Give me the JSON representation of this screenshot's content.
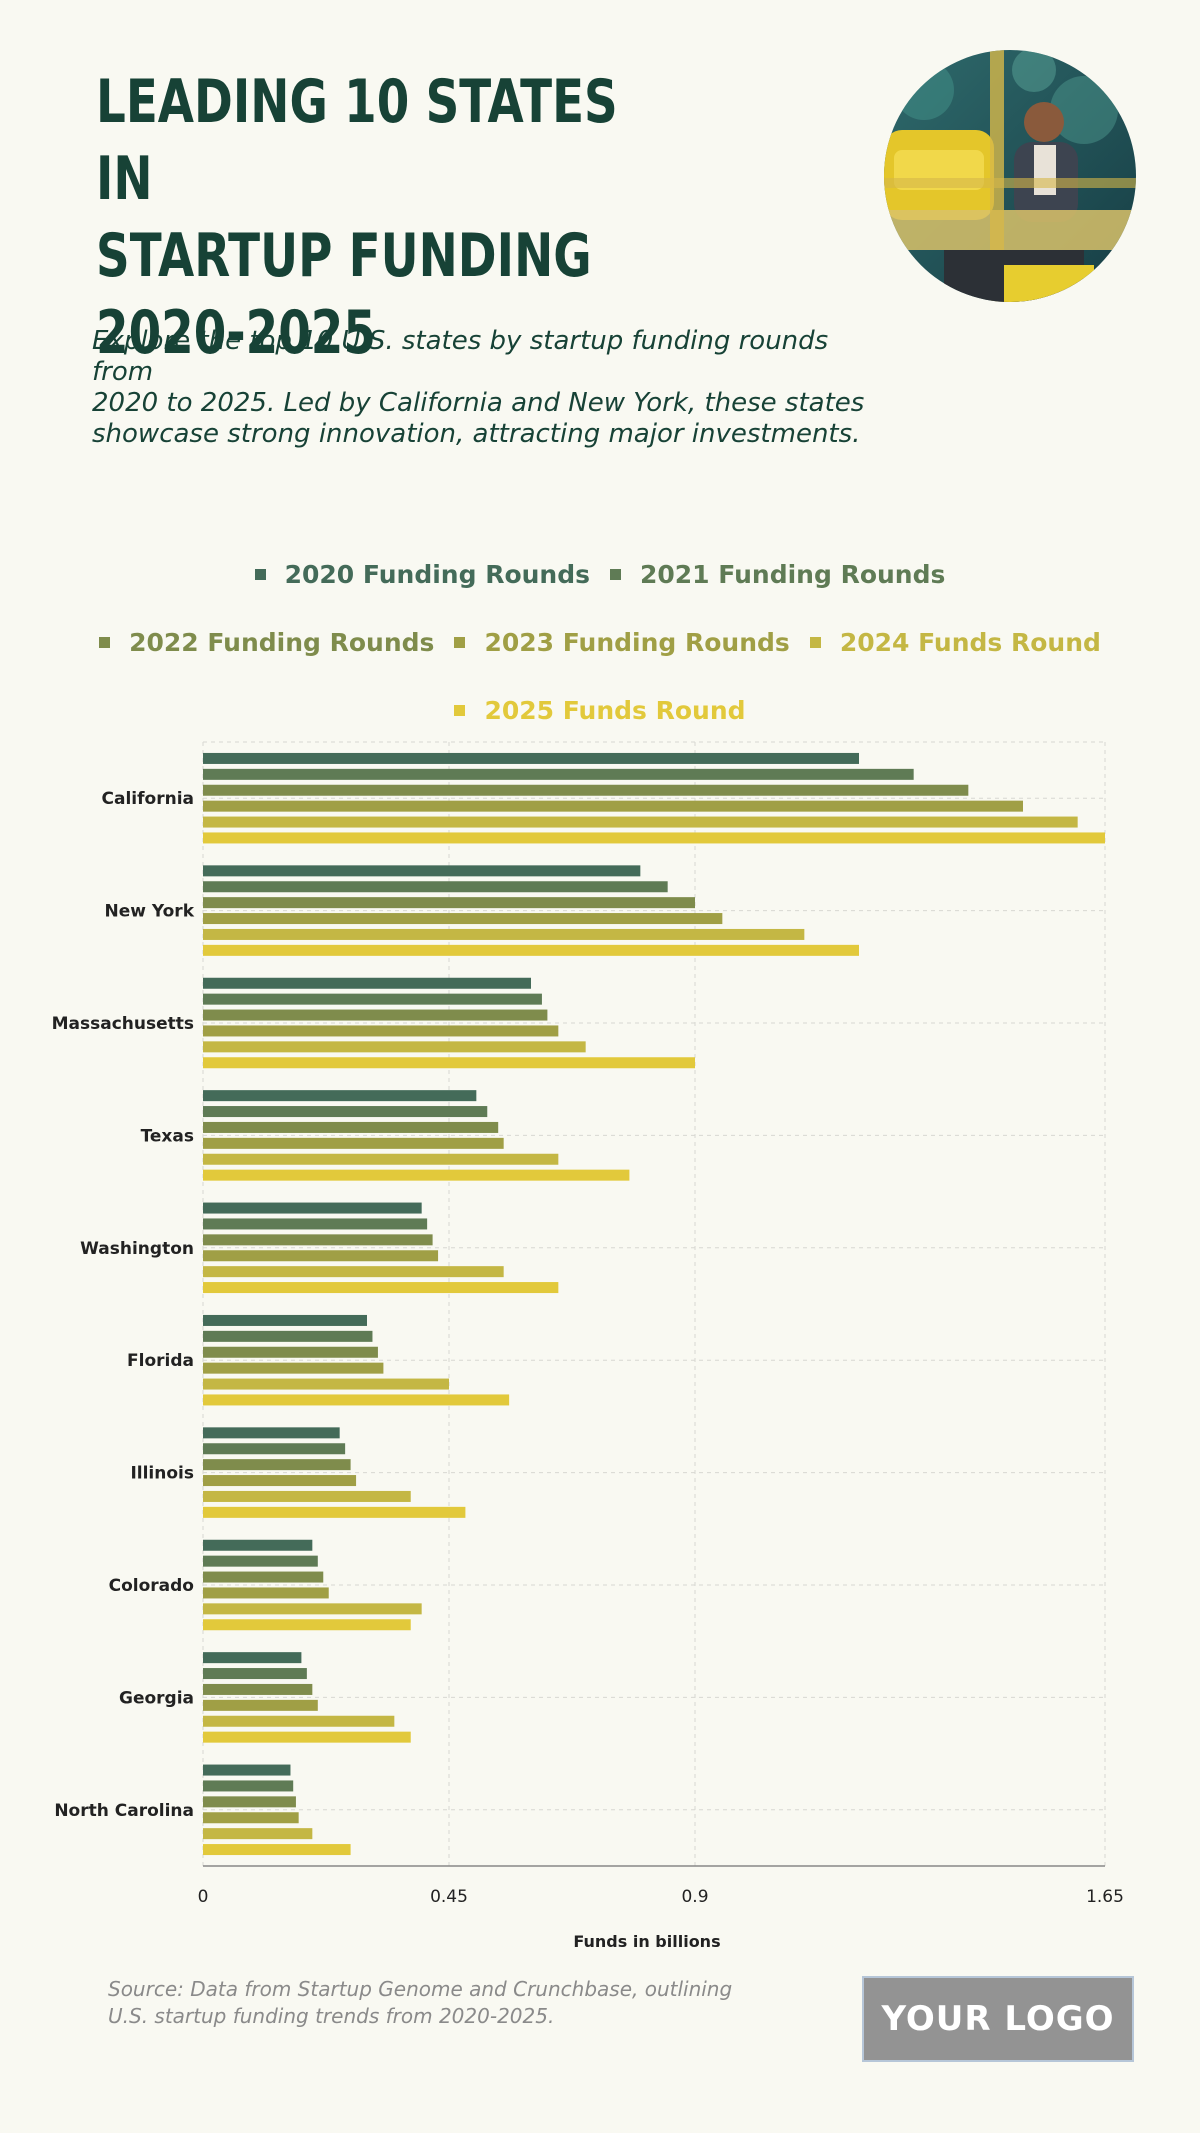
{
  "header": {
    "title_lines": [
      "LEADING 10 STATES IN",
      "STARTUP FUNDING",
      "2020-2025"
    ],
    "subtitle_lines": [
      "Explore the top 10 U.S. states by startup funding rounds from",
      "2020 to 2025. Led by California and New York, these states",
      "showcase strong innovation, attracting major investments."
    ]
  },
  "footer": {
    "source_lines": [
      "Source: Data from Startup Genome and Crunchbase, outlining",
      "U.S. startup funding trends from 2020-2025."
    ],
    "logo_text": "YOUR LOGO"
  },
  "colors": {
    "title": "#174236",
    "background": "#f9f9f2",
    "series": [
      "#446b59",
      "#5f7b55",
      "#7f8c4c",
      "#a09f45",
      "#c4b744",
      "#e2c93b"
    ]
  },
  "chart_data": {
    "type": "bar",
    "orientation": "horizontal",
    "title": "",
    "xlabel": "Funds in billions",
    "ylabel": "",
    "xlim": [
      0,
      1.65
    ],
    "xticks": [
      0,
      0.45,
      0.9,
      1.65
    ],
    "xtick_labels": [
      "0",
      "0.45",
      "0.9",
      "1.65"
    ],
    "grid": true,
    "legend_position": "top",
    "categories": [
      "California",
      "New York",
      "Massachusetts",
      "Texas",
      "Washington",
      "Florida",
      "Illinois",
      "Colorado",
      "Georgia",
      "North Carolina"
    ],
    "series": [
      {
        "name": "2020 Funding Rounds",
        "values": [
          1.2,
          0.8,
          0.6,
          0.5,
          0.4,
          0.3,
          0.25,
          0.2,
          0.18,
          0.16
        ]
      },
      {
        "name": "2021 Funding Rounds",
        "values": [
          1.3,
          0.85,
          0.62,
          0.52,
          0.41,
          0.31,
          0.26,
          0.21,
          0.19,
          0.165
        ]
      },
      {
        "name": "2022 Funding Rounds",
        "values": [
          1.4,
          0.9,
          0.63,
          0.54,
          0.42,
          0.32,
          0.27,
          0.22,
          0.2,
          0.17
        ]
      },
      {
        "name": "2023 Funding Rounds",
        "values": [
          1.5,
          0.95,
          0.65,
          0.55,
          0.43,
          0.33,
          0.28,
          0.23,
          0.21,
          0.175
        ]
      },
      {
        "name": "2024 Funds Round",
        "values": [
          1.6,
          1.1,
          0.7,
          0.65,
          0.55,
          0.45,
          0.38,
          0.4,
          0.35,
          0.2
        ]
      },
      {
        "name": "2025 Funds Round",
        "values": [
          1.65,
          1.2,
          0.9,
          0.78,
          0.65,
          0.56,
          0.48,
          0.38,
          0.38,
          0.27
        ]
      }
    ]
  }
}
